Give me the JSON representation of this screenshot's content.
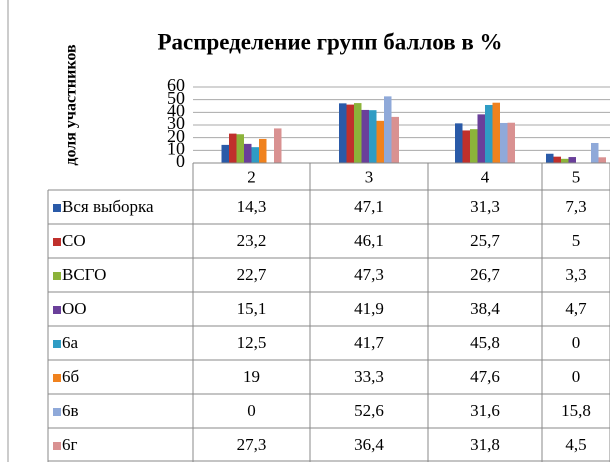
{
  "chart_data": {
    "type": "bar",
    "title": "Распределение групп баллов в %",
    "y_axis_label": "доля участников",
    "categories": [
      "2",
      "3",
      "4",
      "5"
    ],
    "ylim": [
      0,
      60
    ],
    "yticks": [
      0,
      10,
      20,
      30,
      40,
      50,
      60
    ],
    "grid": true,
    "series": [
      {
        "name": "Вся выборка",
        "color": "#2a5aa8",
        "values": [
          14.3,
          47.1,
          31.3,
          7.3
        ],
        "value_labels": [
          "14,3",
          "47,1",
          "31,3",
          "7,3"
        ]
      },
      {
        "name": "СО",
        "color": "#c0302c",
        "values": [
          23.2,
          46.1,
          25.7,
          5
        ],
        "value_labels": [
          "23,2",
          "46,1",
          "25,7",
          "5"
        ]
      },
      {
        "name": "ВСГО",
        "color": "#8cb33a",
        "values": [
          22.7,
          47.3,
          26.7,
          3.3
        ],
        "value_labels": [
          "22,7",
          "47,3",
          "26,7",
          "3,3"
        ]
      },
      {
        "name": "ОО",
        "color": "#6a3f9a",
        "values": [
          15.1,
          41.9,
          38.4,
          4.7
        ],
        "value_labels": [
          "15,1",
          "41,9",
          "38,4",
          "4,7"
        ]
      },
      {
        "name": "6а",
        "color": "#2f9cc4",
        "values": [
          12.5,
          41.7,
          45.8,
          0
        ],
        "value_labels": [
          "12,5",
          "41,7",
          "45,8",
          "0"
        ]
      },
      {
        "name": "6б",
        "color": "#f0821e",
        "values": [
          19,
          33.3,
          47.6,
          0
        ],
        "value_labels": [
          "19",
          "33,3",
          "47,6",
          "0"
        ]
      },
      {
        "name": "6в",
        "color": "#8fa9d9",
        "values": [
          0,
          52.6,
          31.6,
          15.8
        ],
        "value_labels": [
          "0",
          "52,6",
          "31,6",
          "15,8"
        ]
      },
      {
        "name": "6г",
        "color": "#d99191",
        "values": [
          27.3,
          36.4,
          31.8,
          4.5
        ],
        "value_labels": [
          "27,3",
          "36,4",
          "31,8",
          "4,5"
        ]
      }
    ]
  }
}
